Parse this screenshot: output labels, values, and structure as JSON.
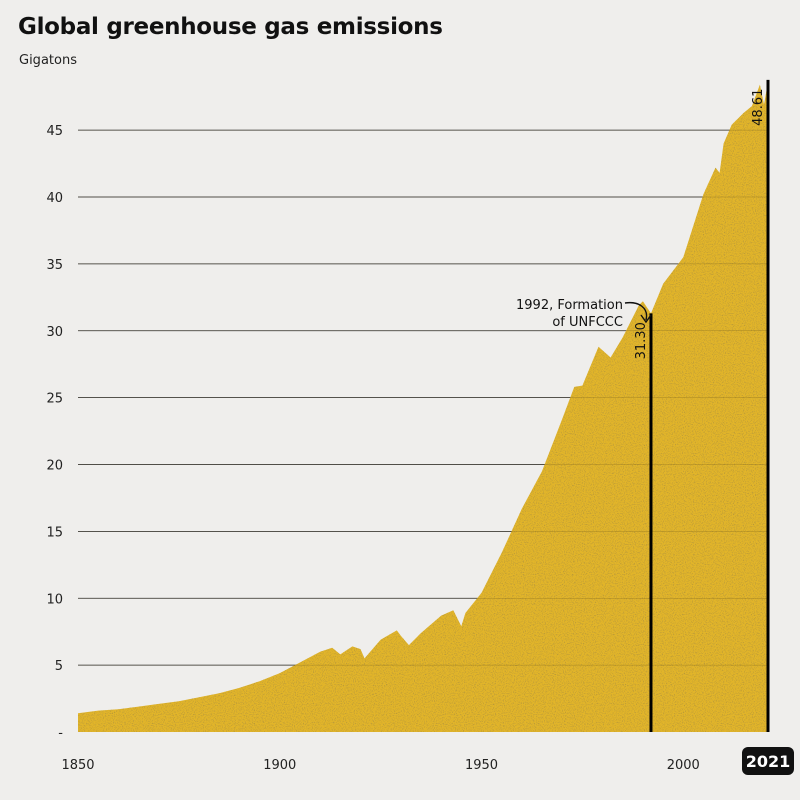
{
  "title": "Global greenhouse gas emissions",
  "subtitle": "Gigatons",
  "chart_data": {
    "type": "area",
    "title": "Global greenhouse gas emissions",
    "ylabel": "Gigatons",
    "xlim": [
      1850,
      2021
    ],
    "ylim": [
      0,
      48
    ],
    "y_ticks": [
      {
        "value": 0,
        "label": "-"
      },
      {
        "value": 5,
        "label": "5"
      },
      {
        "value": 10,
        "label": "10"
      },
      {
        "value": 15,
        "label": "15"
      },
      {
        "value": 20,
        "label": "20"
      },
      {
        "value": 25,
        "label": "25"
      },
      {
        "value": 30,
        "label": "30"
      },
      {
        "value": 35,
        "label": "35"
      },
      {
        "value": 40,
        "label": "40"
      },
      {
        "value": 45,
        "label": "45"
      }
    ],
    "x_ticks": [
      1850,
      1900,
      1950,
      2000
    ],
    "x_end_label": "2021",
    "grid": true,
    "area_color": "#e2b52c",
    "x": [
      1850,
      1855,
      1860,
      1865,
      1870,
      1875,
      1880,
      1885,
      1890,
      1895,
      1900,
      1905,
      1910,
      1913,
      1915,
      1918,
      1920,
      1921,
      1925,
      1929,
      1930,
      1932,
      1935,
      1940,
      1943,
      1945,
      1946,
      1950,
      1955,
      1960,
      1965,
      1970,
      1973,
      1975,
      1979,
      1982,
      1985,
      1989,
      1990,
      1992,
      1995,
      2000,
      2005,
      2008,
      2009,
      2010,
      2012,
      2015,
      2017,
      2019,
      2020,
      2021
    ],
    "y": [
      1.4,
      1.6,
      1.7,
      1.9,
      2.1,
      2.3,
      2.6,
      2.9,
      3.3,
      3.8,
      4.4,
      5.2,
      6.0,
      6.3,
      5.8,
      6.4,
      6.2,
      5.5,
      6.9,
      7.6,
      7.2,
      6.5,
      7.4,
      8.7,
      9.1,
      7.9,
      8.9,
      10.4,
      13.4,
      16.7,
      19.5,
      23.4,
      25.8,
      25.9,
      28.8,
      28.0,
      29.5,
      31.9,
      32.2,
      31.3,
      33.5,
      35.5,
      40.2,
      42.2,
      41.8,
      44.0,
      45.4,
      46.3,
      46.8,
      48.4,
      46.9,
      48.61
    ],
    "annotations": [
      {
        "x": 1992,
        "value": 31.3,
        "value_label": "31.30",
        "text_lines": [
          "1992, Formation",
          "of UNFCCC"
        ]
      },
      {
        "x": 2021,
        "value": 48.61,
        "value_label": "48.61"
      }
    ]
  }
}
